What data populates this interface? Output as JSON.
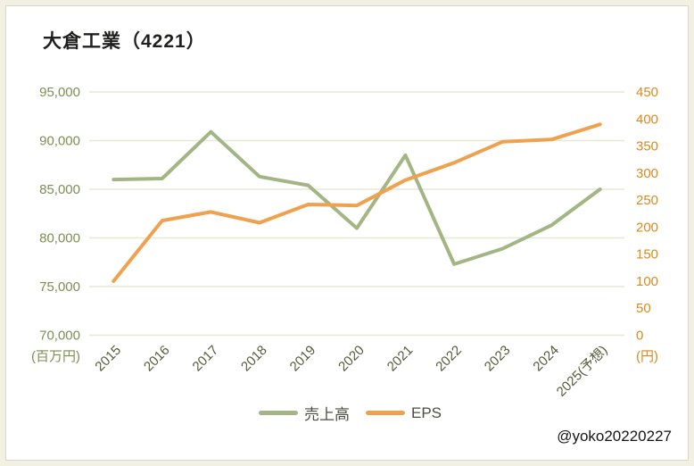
{
  "header": {
    "title": "大倉工業（4221）"
  },
  "attribution": "@yoko20220227",
  "legend": {
    "items": [
      {
        "label": "売上高",
        "color": "#a3b583"
      },
      {
        "label": "EPS",
        "color": "#f0a14d"
      }
    ]
  },
  "chart_data": {
    "type": "line",
    "title": "大倉工業（4221）",
    "categories": [
      "2015",
      "2016",
      "2017",
      "2018",
      "2019",
      "2020",
      "2021",
      "2022",
      "2023",
      "2024",
      "2025(予想)"
    ],
    "series": [
      {
        "name": "売上高",
        "axis": "left",
        "color": "#a3b583",
        "values": [
          86000,
          86100,
          90900,
          86300,
          85400,
          81000,
          88500,
          77300,
          78900,
          81300,
          85000
        ]
      },
      {
        "name": "EPS",
        "axis": "right",
        "color": "#f0a14d",
        "values": [
          100,
          212,
          228,
          208,
          242,
          240,
          287,
          319,
          358,
          362,
          390
        ]
      }
    ],
    "left_axis": {
      "min": 70000,
      "max": 95000,
      "step": 5000,
      "tick_labels": [
        "95,000",
        "90,000",
        "85,000",
        "80,000",
        "75,000",
        "70,000"
      ],
      "unit": "(百万円)",
      "color": "#7e8e52"
    },
    "right_axis": {
      "min": 0,
      "max": 450,
      "step": 50,
      "tick_labels": [
        "450",
        "400",
        "350",
        "300",
        "250",
        "200",
        "150",
        "100",
        "50",
        "0"
      ],
      "unit": "(円)",
      "color": "#d98a1d"
    },
    "x_axis": {
      "label_color": "#555a3b",
      "label_rotation": 45
    },
    "grid": true,
    "gridline_color": "#e7e8d6",
    "legend_position": "bottom"
  }
}
